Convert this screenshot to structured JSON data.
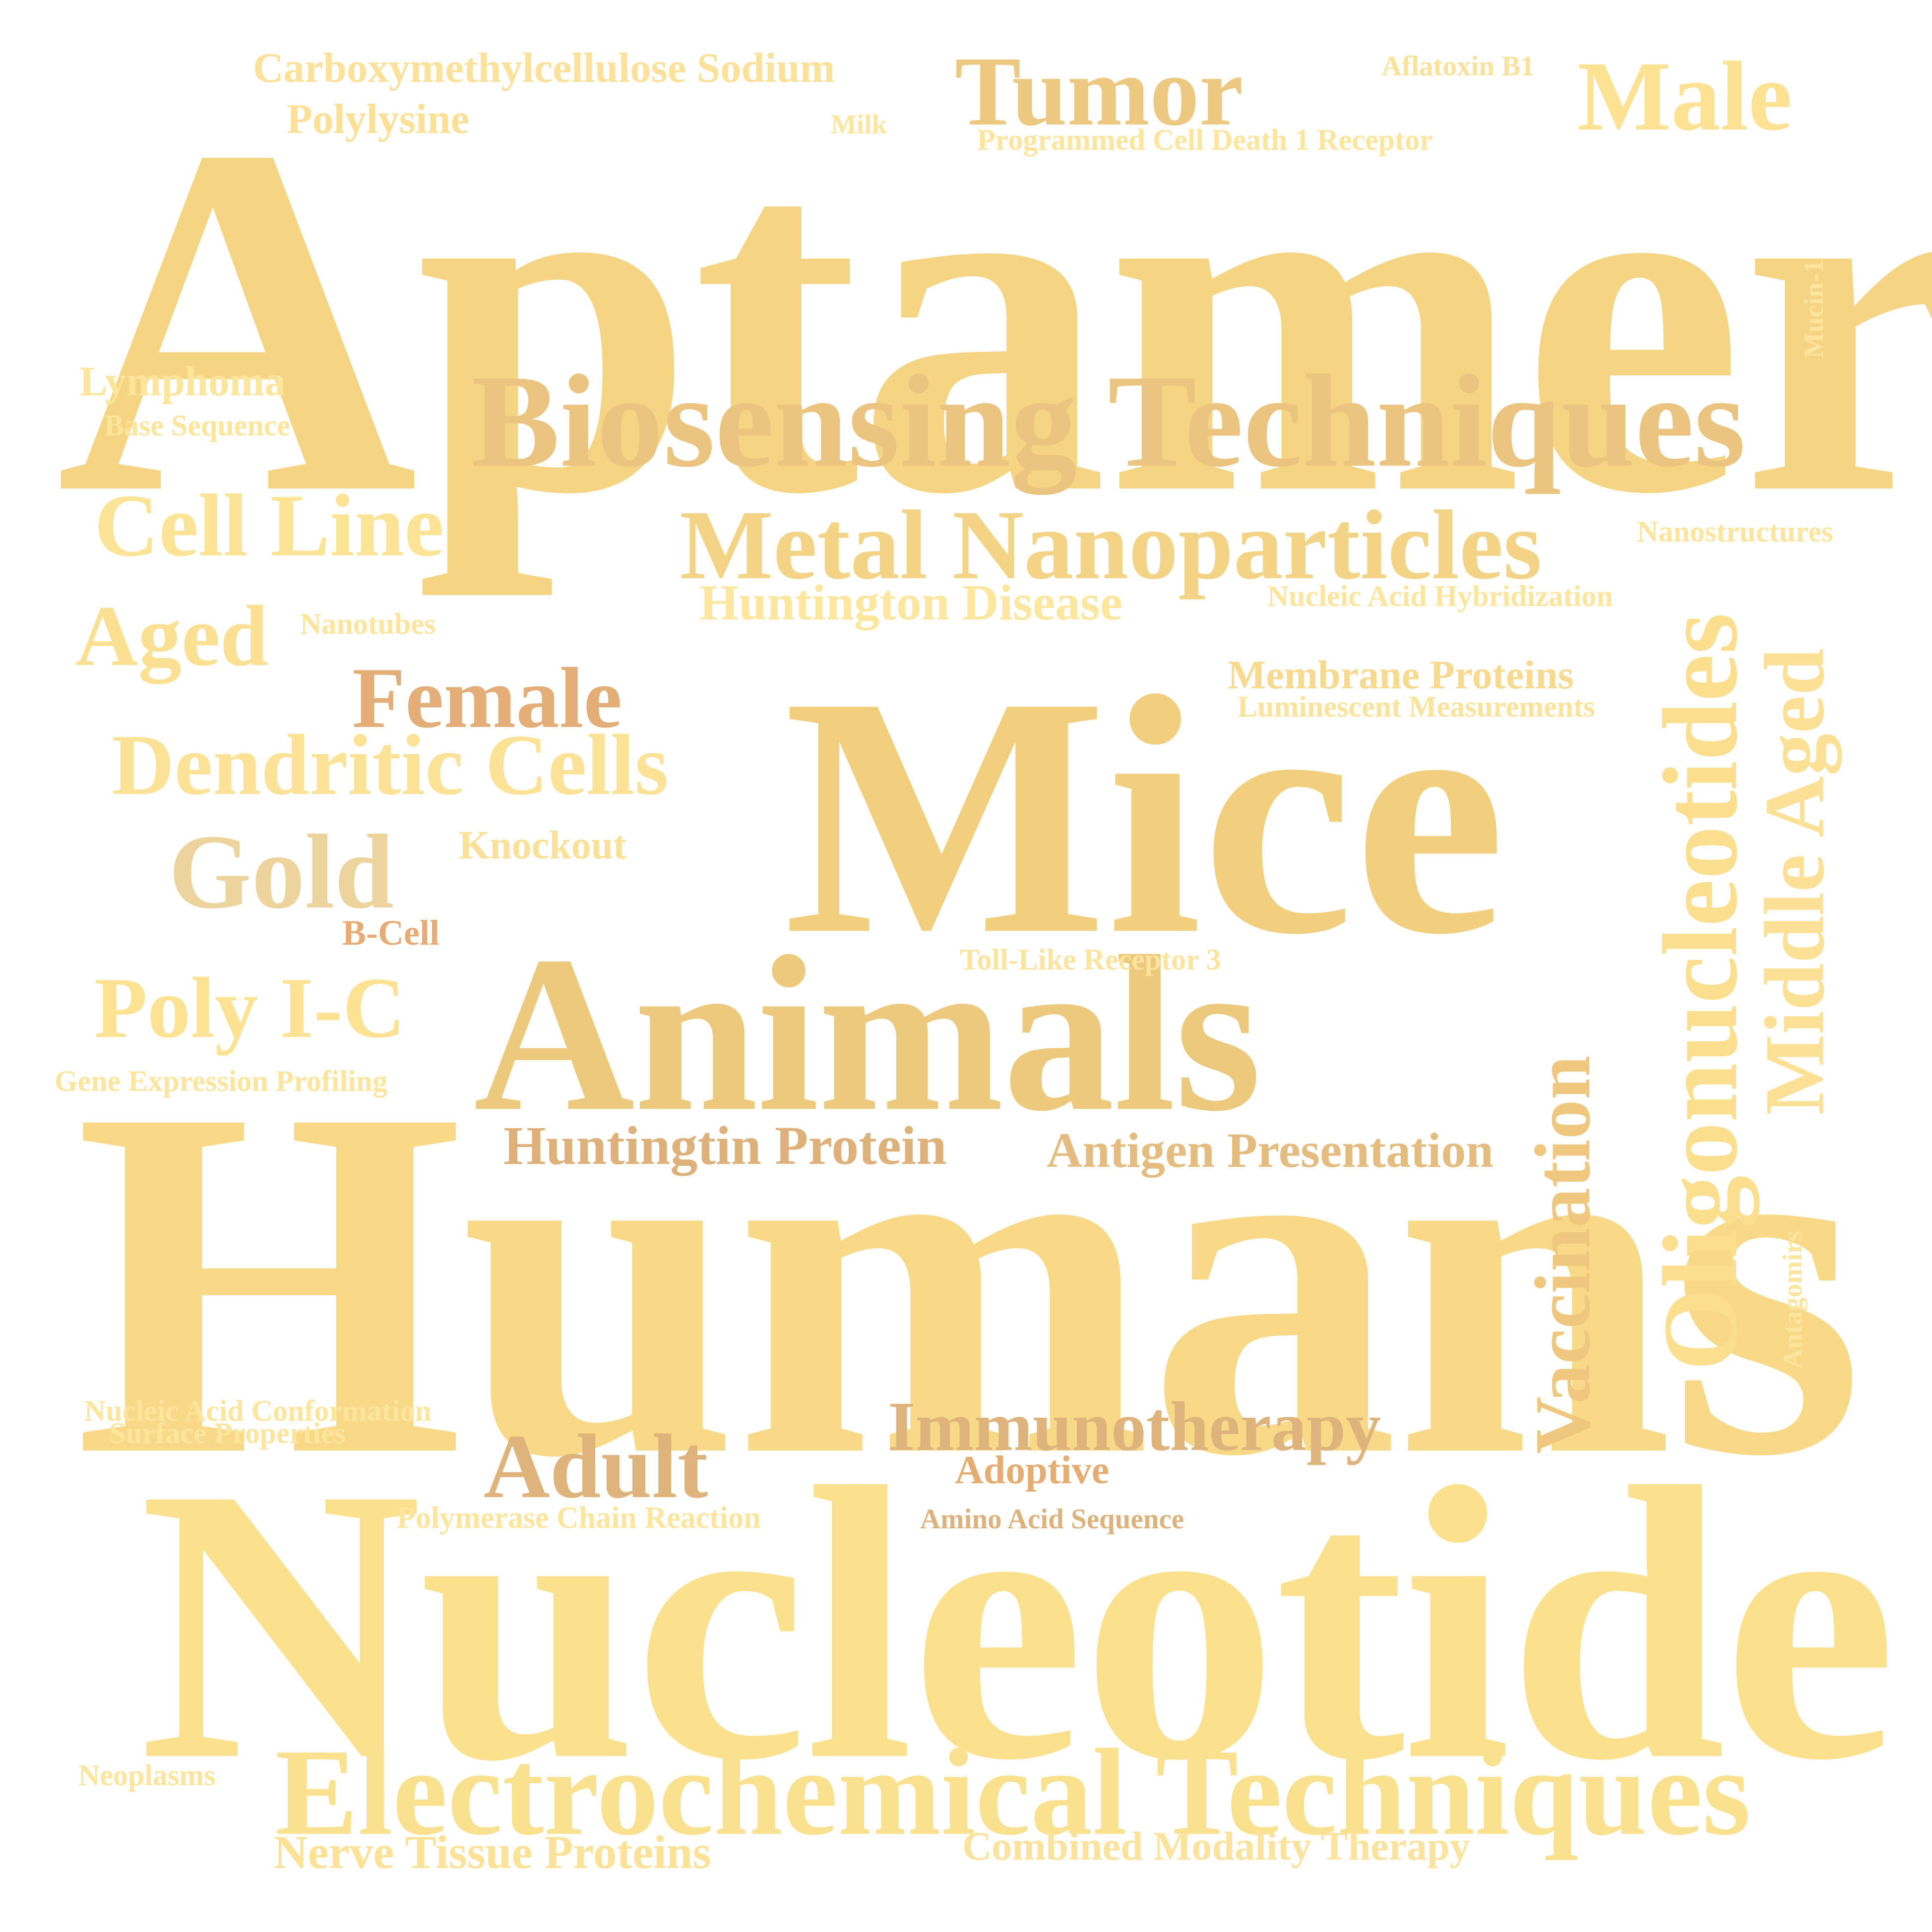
{
  "words": {
    "aptamers": {
      "text": "Aptamers",
      "color": "#f5d484"
    },
    "humans": {
      "text": "Humans",
      "color": "#f8d987"
    },
    "nucleotide": {
      "text": "Nucleotide",
      "color": "#fbe08e"
    },
    "mice": {
      "text": "Mice",
      "color": "#f1cf7e"
    },
    "animals": {
      "text": "Animals",
      "color": "#ecc97c"
    },
    "biosensing": {
      "text": "Biosensing Techniques",
      "color": "#ebc47f"
    },
    "electrochemical": {
      "text": "Electrochemical Techniques",
      "color": "#fae190"
    },
    "oligonucleotides": {
      "text": "Oligonucleotides",
      "color": "#fbdf8e"
    },
    "metal_nano": {
      "text": "Metal Nanoparticles",
      "color": "#f3d487"
    },
    "tumor": {
      "text": "Tumor",
      "color": "#ecc880"
    },
    "male": {
      "text": "Male",
      "color": "#fde293"
    },
    "middle_aged": {
      "text": "Middle Aged",
      "color": "#fbe096"
    },
    "vaccination": {
      "text": "Vaccination",
      "color": "#f0c77f"
    },
    "cell_line": {
      "text": "Cell Line",
      "color": "#fde395"
    },
    "female": {
      "text": "Female",
      "color": "#e4ae78"
    },
    "dendritic": {
      "text": "Dendritic Cells",
      "color": "#fce296"
    },
    "gold": {
      "text": "Gold",
      "color": "#edd39c"
    },
    "poly_ic": {
      "text": "Poly I-C",
      "color": "#fde293"
    },
    "aged": {
      "text": "Aged",
      "color": "#fbe094"
    },
    "immunotherapy": {
      "text": "Immunotherapy",
      "color": "#dfb37c"
    },
    "adult": {
      "text": "Adult",
      "color": "#dfb37c"
    },
    "huntingtin": {
      "text": "Huntingtin Protein",
      "color": "#deb07a"
    },
    "antigen": {
      "text": "Antigen Presentation",
      "color": "#e5bc7f"
    },
    "huntington_disease": {
      "text": "Huntington Disease",
      "color": "#fde79e"
    },
    "membrane": {
      "text": "Membrane Proteins",
      "color": "#f7d990"
    },
    "luminescent": {
      "text": "Luminescent Measurements",
      "color": "#fbe39b"
    },
    "carboxy": {
      "text": "Carboxymethylcellulose Sodium",
      "color": "#fbe199"
    },
    "polylysine": {
      "text": "Polylysine",
      "color": "#fbe096"
    },
    "lymphoma": {
      "text": "Lymphoma",
      "color": "#fde59c"
    },
    "base_seq": {
      "text": "Base Sequence",
      "color": "#fde59c"
    },
    "nerve": {
      "text": "Nerve Tissue Proteins",
      "color": "#fbe297"
    },
    "combined": {
      "text": "Combined Modality Therapy",
      "color": "#fbe39d"
    },
    "knockout": {
      "text": "Knockout",
      "color": "#fbe097"
    },
    "bcell": {
      "text": "B-Cell",
      "color": "#e8ab73"
    },
    "tlr3": {
      "text": "Toll-Like Receptor 3",
      "color": "#fde49e"
    },
    "adoptive": {
      "text": "Adoptive",
      "color": "#e5ad72"
    },
    "amino": {
      "text": "Amino Acid Sequence",
      "color": "#deb27c"
    },
    "pcr": {
      "text": "Polymerase Chain Reaction",
      "color": "#fde59e"
    },
    "nac": {
      "text": "Nucleic Acid Conformation",
      "color": "#fde59e"
    },
    "surface": {
      "text": "Surface Properties",
      "color": "#fde59e"
    },
    "gene_expr": {
      "text": "Gene Expression Profiling",
      "color": "#fde59e"
    },
    "neoplasms": {
      "text": "Neoplasms",
      "color": "#fde59e"
    },
    "nanotubes": {
      "text": "Nanotubes",
      "color": "#fde59e"
    },
    "nanostructures": {
      "text": "Nanostructures",
      "color": "#fde59e"
    },
    "nah": {
      "text": "Nucleic Acid Hybridization",
      "color": "#fde59e"
    },
    "aflatoxin": {
      "text": "Aflatoxin B1",
      "color": "#fbe29a"
    },
    "milk": {
      "text": "Milk",
      "color": "#fde59e"
    },
    "pd1": {
      "text": "Programmed Cell Death 1 Receptor",
      "color": "#fde59e"
    },
    "mucin": {
      "text": "Mucin-1",
      "color": "#fde59e"
    },
    "antagomirs": {
      "text": "Antagomirs",
      "color": "#fde59e"
    }
  }
}
